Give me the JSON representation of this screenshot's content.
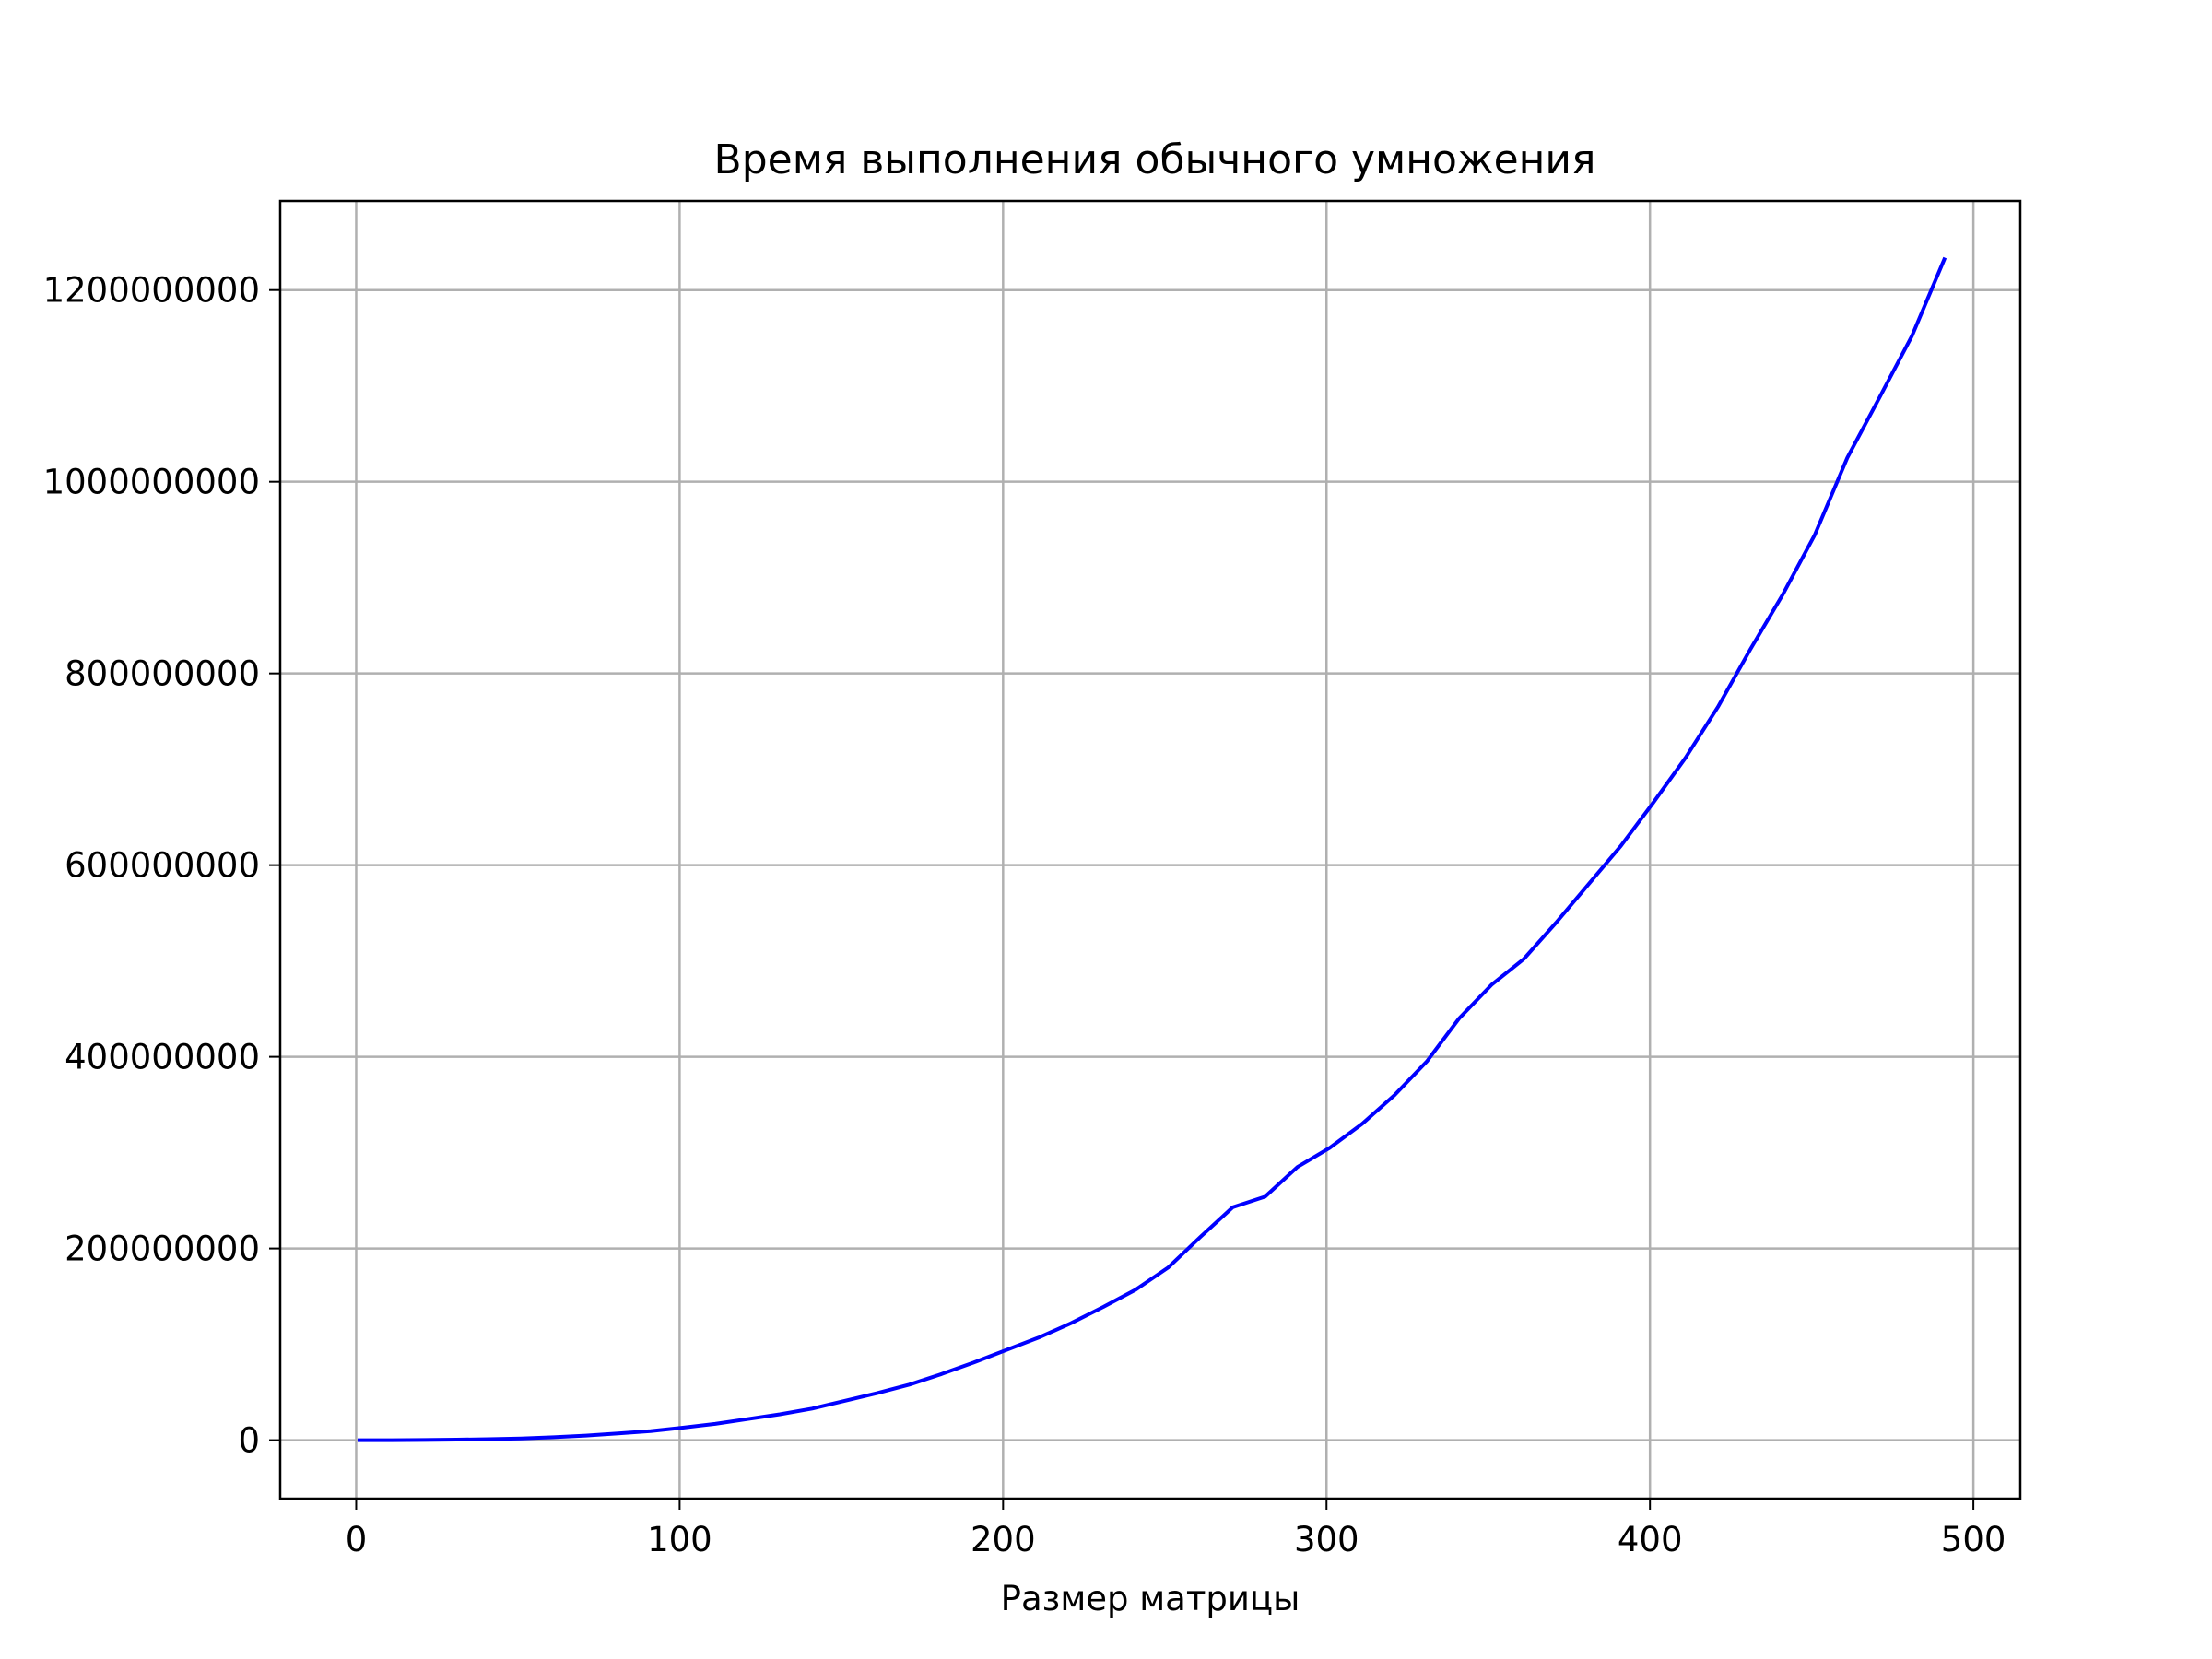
{
  "chart_data": {
    "type": "line",
    "title": "Время выполнения обычного умножения",
    "xlabel": "Размер матрицы",
    "ylabel": "",
    "xlim": [
      -23.5,
      514.5
    ],
    "ylim": [
      -61000000,
      1293000000
    ],
    "grid": true,
    "legend": "none",
    "xticks": [
      0,
      100,
      200,
      300,
      400,
      500
    ],
    "xtick_labels": [
      "0",
      "100",
      "200",
      "300",
      "400",
      "500"
    ],
    "yticks": [
      0,
      200000000,
      400000000,
      600000000,
      800000000,
      1000000000,
      1200000000
    ],
    "ytick_labels": [
      "0",
      "200000000",
      "400000000",
      "600000000",
      "800000000",
      "1000000000",
      "1200000000"
    ],
    "series": [
      {
        "color": "#0000ff",
        "x": [
          1,
          11,
          21,
          31,
          41,
          51,
          61,
          71,
          81,
          91,
          101,
          111,
          121,
          131,
          141,
          151,
          161,
          171,
          181,
          191,
          201,
          211,
          221,
          231,
          241,
          251,
          261,
          271,
          281,
          291,
          301,
          311,
          321,
          331,
          341,
          351,
          361,
          371,
          381,
          391,
          401,
          411,
          421,
          431,
          441,
          451,
          461,
          471,
          481,
          491
        ],
        "y": [
          0,
          0,
          200000,
          500000,
          1000000,
          1800000,
          3000000,
          4800000,
          7000000,
          9500000,
          13000000,
          17000000,
          22000000,
          27000000,
          33000000,
          41000000,
          49000000,
          58000000,
          69000000,
          81000000,
          94000000,
          107000000,
          122000000,
          139000000,
          157000000,
          180000000,
          212000000,
          243000000,
          254000000,
          285000000,
          305000000,
          330000000,
          360000000,
          395000000,
          440000000,
          475000000,
          502000000,
          540000000,
          580000000,
          620000000,
          665000000,
          712000000,
          765000000,
          825000000,
          882000000,
          945000000,
          1025000000,
          1088000000,
          1152000000,
          1232000000
        ]
      }
    ]
  }
}
